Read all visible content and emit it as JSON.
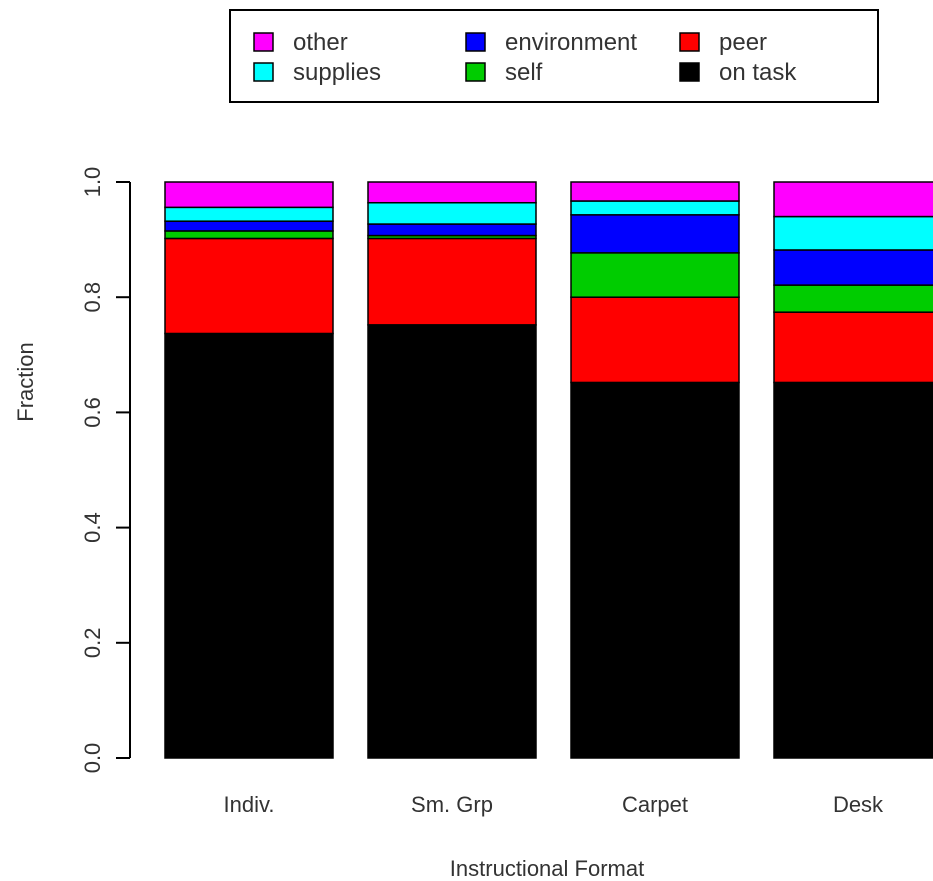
{
  "chart_data": {
    "type": "bar",
    "stacked": true,
    "categories": [
      "Indiv.",
      "Sm. Grp",
      "Carpet",
      "Desk"
    ],
    "xlabel": "Instructional Format",
    "ylabel": "Fraction",
    "ylim": [
      0,
      1
    ],
    "yticks": [
      "0.0",
      "0.2",
      "0.4",
      "0.6",
      "0.8",
      "1.0"
    ],
    "grid": false,
    "legend_position": "top",
    "series": [
      {
        "name": "on task",
        "color": "#000000",
        "values": [
          0.737,
          0.752,
          0.652,
          0.652
        ]
      },
      {
        "name": "peer",
        "color": "#ff0000",
        "values": [
          0.165,
          0.15,
          0.148,
          0.122
        ]
      },
      {
        "name": "self",
        "color": "#00cc00",
        "values": [
          0.013,
          0.005,
          0.077,
          0.047
        ]
      },
      {
        "name": "environment",
        "color": "#0000ff",
        "values": [
          0.017,
          0.02,
          0.066,
          0.061
        ]
      },
      {
        "name": "supplies",
        "color": "#00ffff",
        "values": [
          0.024,
          0.037,
          0.024,
          0.058
        ]
      },
      {
        "name": "other",
        "color": "#ff00ff",
        "values": [
          0.044,
          0.036,
          0.033,
          0.06
        ]
      }
    ],
    "legend_order": [
      "other",
      "supplies",
      "environment",
      "self",
      "peer",
      "on task"
    ]
  }
}
